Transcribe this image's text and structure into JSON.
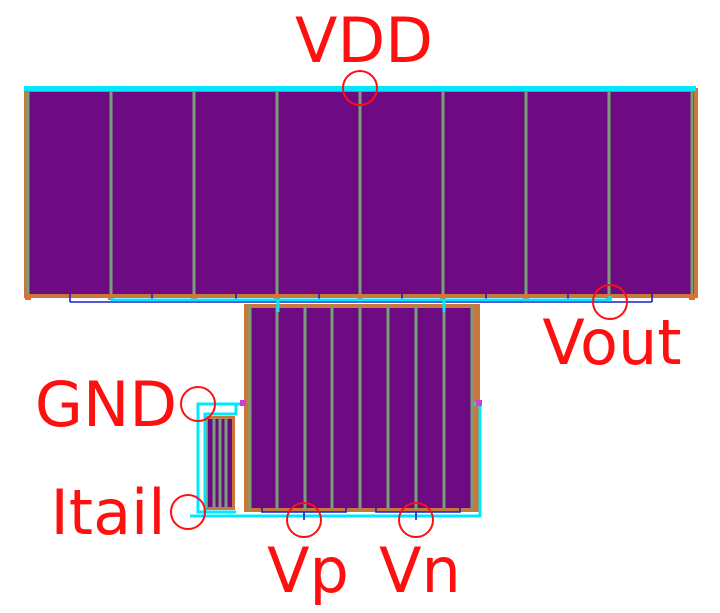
{
  "colors": {
    "active": "#6e0a82",
    "poly": "#78a078",
    "contact_edge": "#c8783c",
    "metal1": "#1e1ec8",
    "metal2": "#00e8ff",
    "marker": "#ff1010",
    "via": "#e07030"
  },
  "labels": {
    "vdd": "VDD",
    "vout": "Vout",
    "gnd": "GND",
    "itail": "Itail",
    "vp": "Vp",
    "vn": "Vn"
  }
}
